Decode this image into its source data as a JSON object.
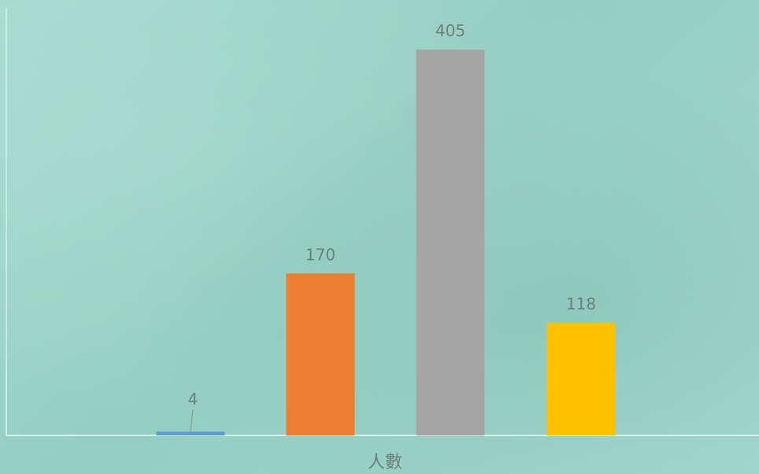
{
  "chart_data": {
    "type": "bar",
    "title": "",
    "xlabel": "人數",
    "ylabel": "",
    "ylim": [
      0,
      430
    ],
    "legend": "none",
    "grid": false,
    "categories": [
      "",
      "",
      "",
      ""
    ],
    "values": [
      4,
      170,
      405,
      118
    ],
    "colors": [
      "#5b9bd5",
      "#ed7d31",
      "#a5a5a5",
      "#ffc000"
    ],
    "data_labels": [
      "4",
      "170",
      "405",
      "118"
    ]
  }
}
